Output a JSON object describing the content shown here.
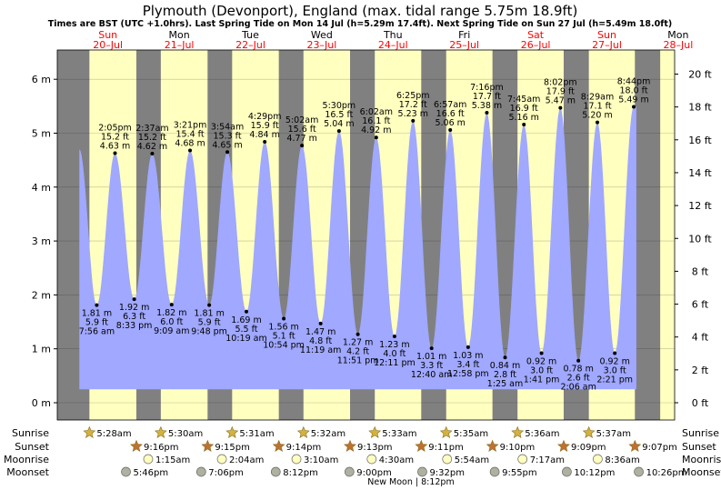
{
  "chart_data": {
    "type": "area",
    "title": "Plymouth (Devonport), England (max. tidal range 5.75m 18.9ft)",
    "subtitle": "Times are BST (UTC +1.0hrs). Last Spring Tide on Mon 14 Jul (h=5.29m 17.4ft). Next Spring Tide on Sun 27 Jul (h=5.49m 18.0ft)",
    "left_axis": {
      "unit": "m",
      "ylim": [
        -0.3,
        6.5
      ],
      "ticks": [
        0,
        1,
        2,
        3,
        4,
        5,
        6
      ],
      "tick_labels": [
        "0 m",
        "1 m",
        "2 m",
        "3 m",
        "4 m",
        "5 m",
        "6 m"
      ]
    },
    "right_axis": {
      "unit": "ft",
      "ticks": [
        0,
        2,
        4,
        6,
        8,
        10,
        12,
        14,
        16,
        18,
        20
      ],
      "tick_labels": [
        "0 ft",
        "2 ft",
        "4 ft",
        "6 ft",
        "8 ft",
        "10 ft",
        "12 ft",
        "14 ft",
        "16 ft",
        "18 ft",
        "20 ft"
      ]
    },
    "x_days": [
      {
        "dow": "Sun",
        "date": "20–Jul",
        "weekend": true
      },
      {
        "dow": "Mon",
        "date": "21–Jul",
        "weekend": false
      },
      {
        "dow": "Tue",
        "date": "22–Jul",
        "weekend": false
      },
      {
        "dow": "Wed",
        "date": "23–Jul",
        "weekend": false
      },
      {
        "dow": "Thu",
        "date": "24–Jul",
        "weekend": false
      },
      {
        "dow": "Fri",
        "date": "25–Jul",
        "weekend": false
      },
      {
        "dow": "Sat",
        "date": "26–Jul",
        "weekend": true
      },
      {
        "dow": "Sun",
        "date": "27–Jul",
        "weekend": true
      },
      {
        "dow": "Mon",
        "date": "28–Jul",
        "weekend": false
      }
    ],
    "start_level_m": 4.7,
    "end_level_m": 5.49,
    "tides": [
      {
        "type": "low",
        "time": "7:56 am",
        "m": 1.81,
        "m_label": "1.81 m",
        "ft_label": "5.9 ft"
      },
      {
        "type": "high",
        "time": "2:05 pm",
        "m": 4.63,
        "m_label": "4.63 m",
        "ft_label": "15.2 ft"
      },
      {
        "type": "low",
        "time": "8:33 pm",
        "m": 1.92,
        "m_label": "1.92 m",
        "ft_label": "6.3 ft"
      },
      {
        "type": "high",
        "time": "2:37 am",
        "m": 4.62,
        "m_label": "4.62 m",
        "ft_label": "15.2 ft"
      },
      {
        "type": "low",
        "time": "9:09 am",
        "m": 1.82,
        "m_label": "1.82 m",
        "ft_label": "6.0 ft"
      },
      {
        "type": "high",
        "time": "3:21 pm",
        "m": 4.68,
        "m_label": "4.68 m",
        "ft_label": "15.4 ft"
      },
      {
        "type": "low",
        "time": "9:48 pm",
        "m": 1.81,
        "m_label": "1.81 m",
        "ft_label": "5.9 ft"
      },
      {
        "type": "high",
        "time": "3:54 am",
        "m": 4.65,
        "m_label": "4.65 m",
        "ft_label": "15.3 ft"
      },
      {
        "type": "low",
        "time": "10:19 am",
        "m": 1.69,
        "m_label": "1.69 m",
        "ft_label": "5.5 ft"
      },
      {
        "type": "high",
        "time": "4:29 pm",
        "m": 4.84,
        "m_label": "4.84 m",
        "ft_label": "15.9 ft"
      },
      {
        "type": "low",
        "time": "10:54 pm",
        "m": 1.56,
        "m_label": "1.56 m",
        "ft_label": "5.1 ft"
      },
      {
        "type": "high",
        "time": "5:02 am",
        "m": 4.77,
        "m_label": "4.77 m",
        "ft_label": "15.6 ft"
      },
      {
        "type": "low",
        "time": "11:19 am",
        "m": 1.47,
        "m_label": "1.47 m",
        "ft_label": "4.8 ft"
      },
      {
        "type": "high",
        "time": "5:30 pm",
        "m": 5.04,
        "m_label": "5.04 m",
        "ft_label": "16.5 ft"
      },
      {
        "type": "low",
        "time": "11:51 pm",
        "m": 1.27,
        "m_label": "1.27 m",
        "ft_label": "4.2 ft"
      },
      {
        "type": "high",
        "time": "6:02 am",
        "m": 4.92,
        "m_label": "4.92 m",
        "ft_label": "16.1 ft"
      },
      {
        "type": "low",
        "time": "12:11 pm",
        "m": 1.23,
        "m_label": "1.23 m",
        "ft_label": "4.0 ft"
      },
      {
        "type": "high",
        "time": "6:25 pm",
        "m": 5.23,
        "m_label": "5.23 m",
        "ft_label": "17.2 ft"
      },
      {
        "type": "low",
        "time": "12:40 am",
        "m": 1.01,
        "m_label": "1.01 m",
        "ft_label": "3.3 ft"
      },
      {
        "type": "high",
        "time": "6:57 am",
        "m": 5.06,
        "m_label": "5.06 m",
        "ft_label": "16.6 ft"
      },
      {
        "type": "low",
        "time": "12:58 pm",
        "m": 1.03,
        "m_label": "1.03 m",
        "ft_label": "3.4 ft"
      },
      {
        "type": "high",
        "time": "7:16 pm",
        "m": 5.38,
        "m_label": "5.38 m",
        "ft_label": "17.7 ft"
      },
      {
        "type": "low",
        "time": "1:25 am",
        "m": 0.84,
        "m_label": "0.84 m",
        "ft_label": "2.8 ft"
      },
      {
        "type": "high",
        "time": "7:45 am",
        "m": 5.16,
        "m_label": "5.16 m",
        "ft_label": "16.9 ft"
      },
      {
        "type": "low",
        "time": "1:41 pm",
        "m": 0.92,
        "m_label": "0.92 m",
        "ft_label": "3.0 ft"
      },
      {
        "type": "high",
        "time": "8:02 pm",
        "m": 5.47,
        "m_label": "5.47 m",
        "ft_label": "17.9 ft"
      },
      {
        "type": "low",
        "time": "2:06 am",
        "m": 0.78,
        "m_label": "0.78 m",
        "ft_label": "2.6 ft"
      },
      {
        "type": "high",
        "time": "8:29 am",
        "m": 5.2,
        "m_label": "5.20 m",
        "ft_label": "17.1 ft"
      },
      {
        "type": "low",
        "time": "2:21 pm",
        "m": 0.92,
        "m_label": "0.92 m",
        "ft_label": "3.0 ft"
      },
      {
        "type": "high",
        "time": "8:44 pm",
        "m": 5.49,
        "m_label": "5.49 m",
        "ft_label": "18.0 ft"
      }
    ],
    "row_labels": [
      "Sunrise",
      "Sunset",
      "Moonrise",
      "Moonset"
    ],
    "sunrise": [
      "5:28am",
      "5:30am",
      "5:31am",
      "5:32am",
      "5:33am",
      "5:35am",
      "5:36am",
      "5:37am"
    ],
    "sunset": [
      "9:16pm",
      "9:15pm",
      "9:14pm",
      "9:13pm",
      "9:11pm",
      "9:10pm",
      "9:09pm",
      "9:07pm"
    ],
    "moonrise": [
      "1:15am",
      "2:04am",
      "3:10am",
      "4:30am",
      "5:54am",
      "7:17am",
      "8:36am"
    ],
    "moonset": [
      "5:46pm",
      "7:06pm",
      "8:12pm",
      "9:00pm",
      "9:32pm",
      "9:55pm",
      "10:12pm",
      "10:26pm"
    ],
    "moon_phase_note": "New Moon | 8:12pm",
    "colors": {
      "night": "#808080",
      "day": "#ffffc0",
      "tide_fill": "#a0a8ff",
      "weekend_text": "#ff0000",
      "weekday_text": "#000000",
      "sun_icon": "#d4b23c",
      "sunset_icon": "#c07030",
      "moonrise_icon": "#ffffc0",
      "moonset_icon": "#b0b0a0"
    }
  }
}
